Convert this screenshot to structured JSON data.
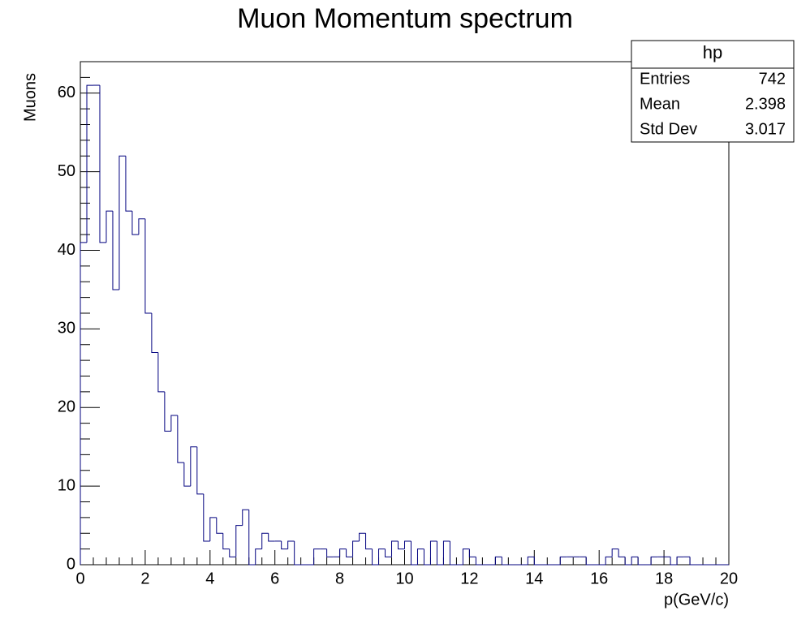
{
  "chart_data": {
    "type": "histogram",
    "title": "Muon Momentum spectrum",
    "x_label": "p(GeV/c)",
    "y_label": "Muons",
    "color": "#00007f",
    "bins": [
      0,
      0.2,
      0.4,
      0.6,
      0.8,
      1,
      1.2,
      1.4,
      1.6,
      1.8,
      2,
      2.2,
      2.4,
      2.6,
      2.8,
      3,
      3.2,
      3.4,
      3.6,
      3.8,
      4,
      4.2,
      4.4,
      4.6,
      4.8,
      5,
      5.2,
      5.4,
      5.6,
      5.8,
      6,
      6.2,
      6.4,
      6.6,
      6.8,
      7,
      7.2,
      7.4,
      7.6,
      7.8,
      8,
      8.2,
      8.4,
      8.6,
      8.8,
      9,
      9.2,
      9.4,
      9.6,
      9.8,
      10,
      10.2,
      10.4,
      10.6,
      10.8,
      11,
      11.2,
      11.4,
      11.6,
      11.8,
      12,
      12.2,
      12.4,
      12.6,
      12.8,
      13,
      13.2,
      13.4,
      13.6,
      13.8,
      14,
      14.2,
      14.4,
      14.6,
      14.8,
      15,
      15.2,
      15.4,
      15.6,
      15.8,
      16,
      16.2,
      16.4,
      16.6,
      16.8,
      17,
      17.2,
      17.4,
      17.6,
      17.8,
      18,
      18.2,
      18.4,
      18.6,
      18.8,
      19,
      19.2,
      19.4,
      19.6,
      19.8,
      20
    ],
    "values": [
      41,
      61,
      61,
      41,
      45,
      35,
      52,
      45,
      42,
      44,
      32,
      27,
      22,
      17,
      19,
      13,
      10,
      15,
      9,
      3,
      6,
      4,
      2,
      1,
      5,
      7,
      0,
      2,
      4,
      3,
      3,
      2,
      3,
      0,
      0,
      0,
      2,
      2,
      1,
      1,
      2,
      1,
      3,
      4,
      2,
      0,
      2,
      1,
      3,
      2,
      3,
      0,
      2,
      0,
      3,
      0,
      3,
      0,
      0,
      2,
      1,
      0,
      0,
      0,
      1,
      0,
      0,
      0,
      0,
      1,
      0,
      0,
      0,
      0,
      1,
      1,
      1,
      1,
      0,
      0,
      0,
      1,
      2,
      1,
      0,
      1,
      0,
      0,
      1,
      1,
      1,
      0,
      1,
      1,
      0,
      0,
      0,
      0,
      0,
      0
    ],
    "xlim": [
      0,
      20
    ],
    "ylim": [
      0,
      64
    ],
    "xticks": [
      0,
      2,
      4,
      6,
      8,
      10,
      12,
      14,
      16,
      18,
      20
    ],
    "yticks": [
      0,
      10,
      20,
      30,
      40,
      50,
      60
    ],
    "stats": {
      "title": "hp",
      "rows": [
        {
          "label": "Entries",
          "value": 742
        },
        {
          "label": "Mean",
          "value": 2.398
        },
        {
          "label": "Std Dev",
          "value": 3.017
        }
      ]
    }
  }
}
